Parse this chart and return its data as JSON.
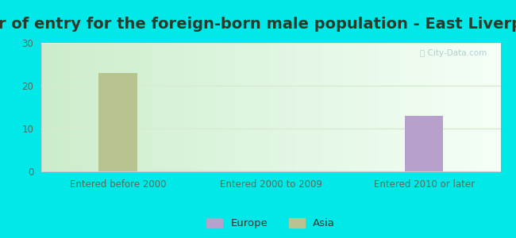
{
  "title": "Year of entry for the foreign-born male population - East Liverpool",
  "categories": [
    "Entered before 2000",
    "Entered 2000 to 2009",
    "Entered 2010 or later"
  ],
  "europe_values": [
    0,
    0,
    13
  ],
  "asia_values": [
    23,
    0,
    0
  ],
  "europe_color": "#b8a0cc",
  "asia_color": "#b8c490",
  "ylim": [
    0,
    30
  ],
  "yticks": [
    0,
    10,
    20,
    30
  ],
  "bg_outer": "#00e8e8",
  "legend_europe": "Europe",
  "legend_asia": "Asia",
  "bar_width": 0.25,
  "title_fontsize": 14,
  "tick_fontsize": 8.5,
  "legend_fontsize": 9.5,
  "title_color": "#2a3a2a",
  "tick_color": "#5a6a5a",
  "grid_color": "#d8ead0",
  "watermark_color": "#a8c8c8"
}
